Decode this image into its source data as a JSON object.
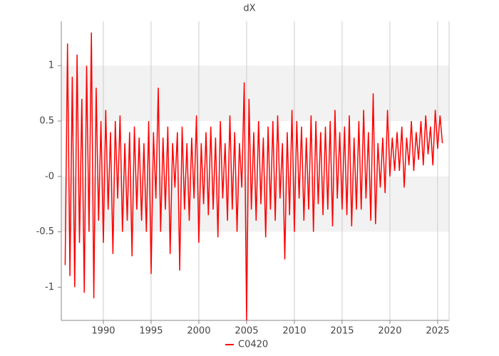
{
  "chart_data": {
    "type": "line",
    "title": "dX",
    "x": [
      1986,
      1986.25,
      1986.5,
      1986.75,
      1987,
      1987.25,
      1987.5,
      1987.75,
      1988,
      1988.25,
      1988.5,
      1988.75,
      1989,
      1989.25,
      1989.5,
      1989.75,
      1990,
      1990.25,
      1990.5,
      1990.75,
      1991,
      1991.25,
      1991.5,
      1991.75,
      1992,
      1992.25,
      1992.5,
      1992.75,
      1993,
      1993.25,
      1993.5,
      1993.75,
      1994,
      1994.25,
      1994.5,
      1994.75,
      1995,
      1995.25,
      1995.5,
      1995.75,
      1996,
      1996.25,
      1996.5,
      1996.75,
      1997,
      1997.25,
      1997.5,
      1997.75,
      1998,
      1998.25,
      1998.5,
      1998.75,
      1999,
      1999.25,
      1999.5,
      1999.75,
      2000,
      2000.25,
      2000.5,
      2000.75,
      2001,
      2001.25,
      2001.5,
      2001.75,
      2002,
      2002.25,
      2002.5,
      2002.75,
      2003,
      2003.25,
      2003.5,
      2003.75,
      2004,
      2004.25,
      2004.5,
      2004.75,
      2005,
      2005.25,
      2005.5,
      2005.75,
      2006,
      2006.25,
      2006.5,
      2006.75,
      2007,
      2007.25,
      2007.5,
      2007.75,
      2008,
      2008.25,
      2008.5,
      2008.75,
      2009,
      2009.25,
      2009.5,
      2009.75,
      2010,
      2010.25,
      2010.5,
      2010.75,
      2011,
      2011.25,
      2011.5,
      2011.75,
      2012,
      2012.25,
      2012.5,
      2012.75,
      2013,
      2013.25,
      2013.5,
      2013.75,
      2014,
      2014.25,
      2014.5,
      2014.75,
      2015,
      2015.25,
      2015.5,
      2015.75,
      2016,
      2016.25,
      2016.5,
      2016.75,
      2017,
      2017.25,
      2017.5,
      2017.75,
      2018,
      2018.25,
      2018.5,
      2018.75,
      2019,
      2019.25,
      2019.5,
      2019.75,
      2020,
      2020.25,
      2020.5,
      2020.75,
      2021,
      2021.25,
      2021.5,
      2021.75,
      2022,
      2022.25,
      2022.5,
      2022.75,
      2023,
      2023.25,
      2023.5,
      2023.75,
      2024,
      2024.25,
      2024.5,
      2024.75,
      2025,
      2025.25,
      2025.5
    ],
    "series": [
      {
        "name": "C0420",
        "color": "#ff0000",
        "values": [
          -0.8,
          1.2,
          -0.9,
          0.9,
          -1.0,
          1.1,
          -0.6,
          0.7,
          -1.05,
          1.0,
          -0.5,
          1.3,
          -1.1,
          0.8,
          -0.4,
          0.5,
          -0.6,
          0.6,
          -0.3,
          0.4,
          -0.7,
          0.5,
          -0.2,
          0.55,
          -0.5,
          0.3,
          -0.4,
          0.4,
          -0.72,
          0.45,
          -0.3,
          0.35,
          -0.4,
          0.3,
          -0.5,
          0.5,
          -0.88,
          0.4,
          -0.2,
          0.8,
          -0.5,
          0.35,
          -0.3,
          0.45,
          -0.7,
          0.3,
          -0.1,
          0.4,
          -0.85,
          0.45,
          -0.3,
          0.3,
          -0.4,
          0.35,
          -0.2,
          0.55,
          -0.6,
          0.3,
          -0.25,
          0.4,
          -0.35,
          0.45,
          -0.3,
          0.35,
          -0.55,
          0.5,
          -0.2,
          0.3,
          -0.4,
          0.55,
          -0.3,
          0.4,
          -0.5,
          0.3,
          -0.1,
          0.85,
          -1.3,
          0.7,
          -0.3,
          0.4,
          -0.4,
          0.5,
          -0.25,
          0.35,
          -0.55,
          0.45,
          -0.3,
          0.5,
          -0.4,
          0.55,
          -0.2,
          0.3,
          -0.75,
          0.4,
          -0.35,
          0.6,
          -0.5,
          0.5,
          -0.2,
          0.45,
          -0.4,
          0.35,
          -0.3,
          0.55,
          -0.5,
          0.5,
          -0.25,
          0.4,
          -0.35,
          0.45,
          -0.3,
          0.5,
          -0.45,
          0.6,
          -0.2,
          0.4,
          -0.3,
          0.45,
          -0.35,
          0.55,
          -0.45,
          0.35,
          -0.3,
          0.5,
          -0.3,
          0.6,
          -0.2,
          0.4,
          -0.4,
          0.75,
          -0.43,
          0.3,
          -0.1,
          0.35,
          -0.15,
          0.6,
          0.0,
          0.35,
          0.05,
          0.4,
          0.05,
          0.45,
          -0.1,
          0.35,
          0.1,
          0.5,
          0.05,
          0.4,
          0.15,
          0.5,
          0.1,
          0.55,
          0.2,
          0.45,
          0.1,
          0.6,
          0.25,
          0.55,
          0.3
        ]
      }
    ],
    "xlim": [
      1985.6,
      2026.2
    ],
    "xticks": [
      1990,
      1995,
      2000,
      2005,
      2010,
      2015,
      2020,
      2025
    ],
    "ylim": [
      -1.3,
      1.4
    ],
    "yticks": [
      1,
      0.5,
      {
        "value": 0,
        "label": "-0"
      },
      -0.5,
      -1
    ],
    "grid": true,
    "legend": "bottom"
  }
}
